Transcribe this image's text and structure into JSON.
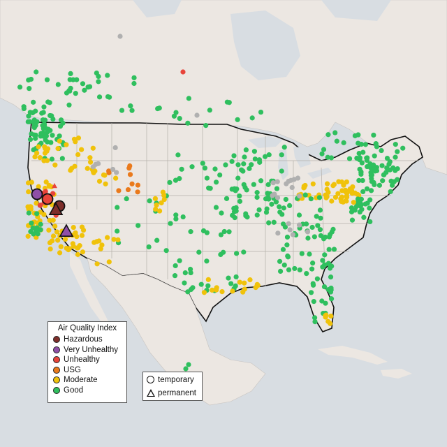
{
  "legend": {
    "title": "Air Quality Index",
    "categories": [
      {
        "label": "Hazardous",
        "color": "#7e2e2a"
      },
      {
        "label": "Very Unhealthy",
        "color": "#8f4fa7"
      },
      {
        "label": "Unhealthy",
        "color": "#e8443a"
      },
      {
        "label": "USG",
        "color": "#ea7a1c"
      },
      {
        "label": "Moderate",
        "color": "#f0c20a"
      },
      {
        "label": "Good",
        "color": "#2fbf5e"
      }
    ],
    "no_data_color": "#b0b0b0"
  },
  "monitor_types": [
    {
      "label": "temporary",
      "shape": "circle"
    },
    {
      "label": "permanent",
      "shape": "triangle"
    }
  ],
  "map": {
    "land_color": "#ece7e2",
    "water_color": "#d8dde2",
    "border_color": "#111111"
  }
}
